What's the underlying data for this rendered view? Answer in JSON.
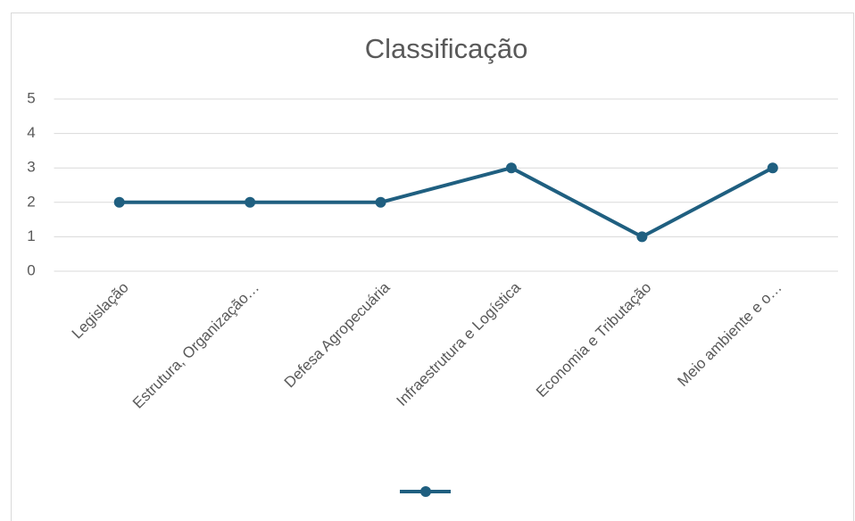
{
  "chart_data": {
    "type": "line",
    "title": "Classificação",
    "categories": [
      "Legislação",
      "Estrutura, Organização…",
      "Defesa Agropecuária",
      "Infraestrutura  e Logística",
      "Economia e Tributação",
      "Meio ambiente e o…"
    ],
    "values": [
      2,
      2,
      2,
      3,
      1,
      3
    ],
    "color": "#1f5f80",
    "ylim": [
      0,
      5
    ],
    "yticks": [
      0,
      1,
      2,
      3,
      4,
      5
    ],
    "grid": true
  }
}
